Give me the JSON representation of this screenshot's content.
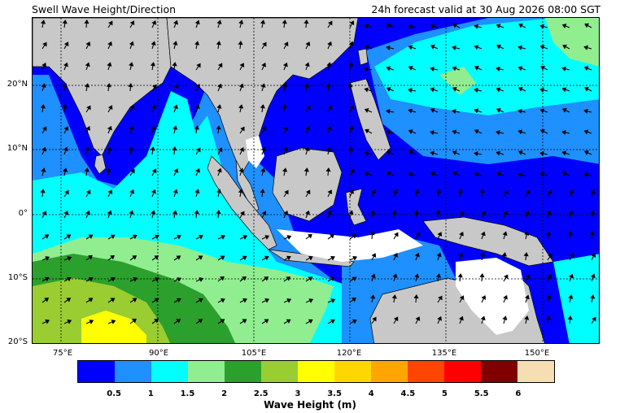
{
  "header": {
    "title": "Swell Wave Height/Direction",
    "valid_time": "24h forecast valid at 30 Aug 2026 08:00 SGT"
  },
  "map": {
    "lat_labels": [
      "20°N",
      "10°N",
      "0°",
      "10°S",
      "20°S"
    ],
    "lon_labels": [
      "75°E",
      "90°E",
      "105°E",
      "120°E",
      "135°E",
      "150°E"
    ],
    "land_color": "#c8c8c8",
    "arrow_color": "#000000"
  },
  "colorbar": {
    "label": "Wave Height (m)",
    "ticks": [
      "0.5",
      "1",
      "1.5",
      "2",
      "2.5",
      "3",
      "3.5",
      "4",
      "4.5",
      "5",
      "5.5",
      "6"
    ],
    "colors": [
      "#0000ff",
      "#1e90ff",
      "#00ffff",
      "#90ee90",
      "#2ca02c",
      "#9acd32",
      "#ffff00",
      "#ffd700",
      "#ffa500",
      "#ff4500",
      "#ff0000",
      "#800000",
      "#f5deb3"
    ]
  }
}
